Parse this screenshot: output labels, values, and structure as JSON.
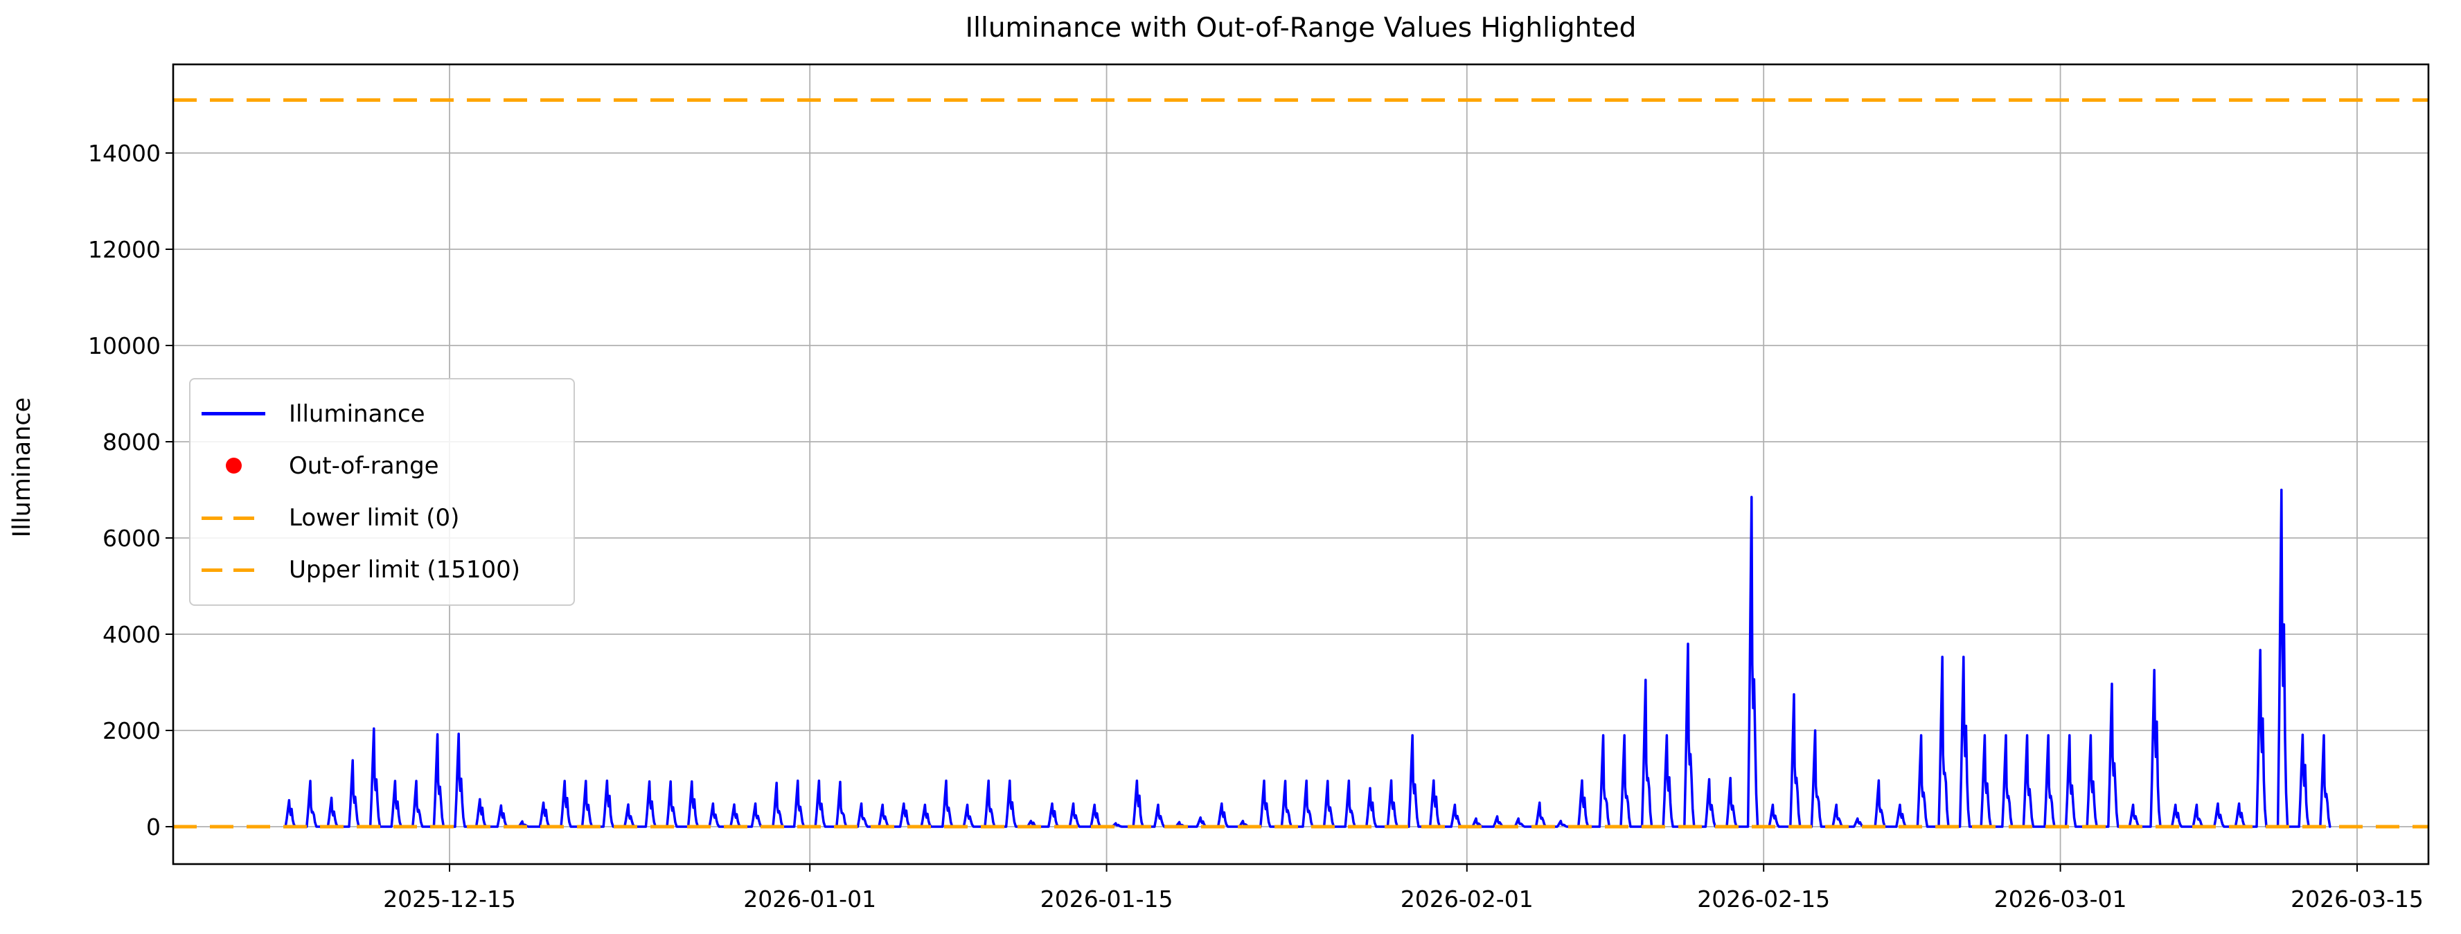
{
  "colors": {
    "line": "#0000ff",
    "out_of_range": "#ff0000",
    "limit": "#ffa500",
    "grid": "#b0b0b0",
    "spine": "#000000",
    "text": "#000000",
    "background": "#ffffff",
    "legend_border": "#cccccc"
  },
  "chart_data": {
    "type": "line",
    "title": "Illuminance with Out-of-Range Values Highlighted",
    "xlabel": "",
    "ylabel": "Illuminance",
    "grid": true,
    "xlim": [
      "2025-12-02",
      "2026-03-18"
    ],
    "ylim": [
      -780,
      15845
    ],
    "x_tick_labels": [
      "2025-12-15",
      "2026-01-01",
      "2026-01-15",
      "2026-02-01",
      "2026-02-15",
      "2026-03-01",
      "2026-03-15"
    ],
    "y_tick_values": [
      0,
      2000,
      4000,
      6000,
      8000,
      10000,
      12000,
      14000
    ],
    "y_tick_labels": [
      "0",
      "2000",
      "4000",
      "6000",
      "8000",
      "10000",
      "12000",
      "14000"
    ],
    "limits": {
      "lower": 0,
      "upper": 15100,
      "lower_label": "Lower limit (0)",
      "upper_label": "Upper limit (15100)"
    },
    "legend": {
      "position": "upper left inside",
      "entries": [
        {
          "label": "Illuminance",
          "type": "line",
          "color": "#0000ff"
        },
        {
          "label": "Out-of-range",
          "type": "scatter",
          "color": "#ff0000"
        },
        {
          "label": "Lower limit (0)",
          "type": "dashed-line",
          "color": "#ffa500"
        },
        {
          "label": "Upper limit (15100)",
          "type": "dashed-line",
          "color": "#ffa500"
        }
      ]
    },
    "out_of_range_points": [],
    "series": [
      {
        "name": "Illuminance",
        "color": "#0000ff",
        "description": "Daily daytime illuminance spikes; value is the estimated peak of each day's spike, baseline 0 at night.",
        "daily_peaks": [
          [
            "2025-12-07",
            550
          ],
          [
            "2025-12-08",
            950
          ],
          [
            "2025-12-09",
            600
          ],
          [
            "2025-12-10",
            1380
          ],
          [
            "2025-12-11",
            2040
          ],
          [
            "2025-12-12",
            950
          ],
          [
            "2025-12-13",
            950
          ],
          [
            "2025-12-14",
            1920
          ],
          [
            "2025-12-15",
            1930
          ],
          [
            "2025-12-16",
            570
          ],
          [
            "2025-12-17",
            440
          ],
          [
            "2025-12-18",
            110
          ],
          [
            "2025-12-19",
            500
          ],
          [
            "2025-12-20",
            950
          ],
          [
            "2025-12-21",
            950
          ],
          [
            "2025-12-22",
            955
          ],
          [
            "2025-12-23",
            460
          ],
          [
            "2025-12-24",
            940
          ],
          [
            "2025-12-25",
            940
          ],
          [
            "2025-12-26",
            940
          ],
          [
            "2025-12-27",
            480
          ],
          [
            "2025-12-28",
            460
          ],
          [
            "2025-12-29",
            480
          ],
          [
            "2025-12-30",
            910
          ],
          [
            "2025-12-31",
            955
          ],
          [
            "2026-01-01",
            955
          ],
          [
            "2026-01-02",
            930
          ],
          [
            "2026-01-03",
            480
          ],
          [
            "2026-01-04",
            455
          ],
          [
            "2026-01-05",
            480
          ],
          [
            "2026-01-06",
            455
          ],
          [
            "2026-01-07",
            955
          ],
          [
            "2026-01-08",
            455
          ],
          [
            "2026-01-09",
            955
          ],
          [
            "2026-01-10",
            955
          ],
          [
            "2026-01-11",
            120
          ],
          [
            "2026-01-12",
            480
          ],
          [
            "2026-01-13",
            480
          ],
          [
            "2026-01-14",
            455
          ],
          [
            "2026-01-15",
            70
          ],
          [
            "2026-01-16",
            955
          ],
          [
            "2026-01-17",
            455
          ],
          [
            "2026-01-18",
            95
          ],
          [
            "2026-01-19",
            190
          ],
          [
            "2026-01-20",
            480
          ],
          [
            "2026-01-21",
            120
          ],
          [
            "2026-01-22",
            955
          ],
          [
            "2026-01-23",
            950
          ],
          [
            "2026-01-24",
            955
          ],
          [
            "2026-01-25",
            950
          ],
          [
            "2026-01-26",
            955
          ],
          [
            "2026-01-27",
            800
          ],
          [
            "2026-01-28",
            960
          ],
          [
            "2026-01-29",
            1900
          ],
          [
            "2026-01-30",
            960
          ],
          [
            "2026-01-31",
            455
          ],
          [
            "2026-02-01",
            170
          ],
          [
            "2026-02-02",
            215
          ],
          [
            "2026-02-03",
            170
          ],
          [
            "2026-02-04",
            500
          ],
          [
            "2026-02-05",
            120
          ],
          [
            "2026-02-06",
            960
          ],
          [
            "2026-02-07",
            1900
          ],
          [
            "2026-02-08",
            1900
          ],
          [
            "2026-02-09",
            3050
          ],
          [
            "2026-02-10",
            1900
          ],
          [
            "2026-02-11",
            3800
          ],
          [
            "2026-02-12",
            985
          ],
          [
            "2026-02-13",
            1010
          ],
          [
            "2026-02-14",
            6850
          ],
          [
            "2026-02-15",
            455
          ],
          [
            "2026-02-16",
            2750
          ],
          [
            "2026-02-17",
            2000
          ],
          [
            "2026-02-18",
            455
          ],
          [
            "2026-02-19",
            170
          ],
          [
            "2026-02-20",
            960
          ],
          [
            "2026-02-21",
            455
          ],
          [
            "2026-02-22",
            1900
          ],
          [
            "2026-02-23",
            3530
          ],
          [
            "2026-02-24",
            3530
          ],
          [
            "2026-02-25",
            1900
          ],
          [
            "2026-02-26",
            1900
          ],
          [
            "2026-02-27",
            1900
          ],
          [
            "2026-02-28",
            1900
          ],
          [
            "2026-03-01",
            1900
          ],
          [
            "2026-03-02",
            1900
          ],
          [
            "2026-03-03",
            2970
          ],
          [
            "2026-03-04",
            455
          ],
          [
            "2026-03-05",
            3255
          ],
          [
            "2026-03-06",
            455
          ],
          [
            "2026-03-07",
            455
          ],
          [
            "2026-03-08",
            480
          ],
          [
            "2026-03-09",
            480
          ],
          [
            "2026-03-10",
            3670
          ],
          [
            "2026-03-11",
            7000
          ],
          [
            "2026-03-12",
            1910
          ],
          [
            "2026-03-13",
            1900
          ]
        ]
      }
    ]
  }
}
